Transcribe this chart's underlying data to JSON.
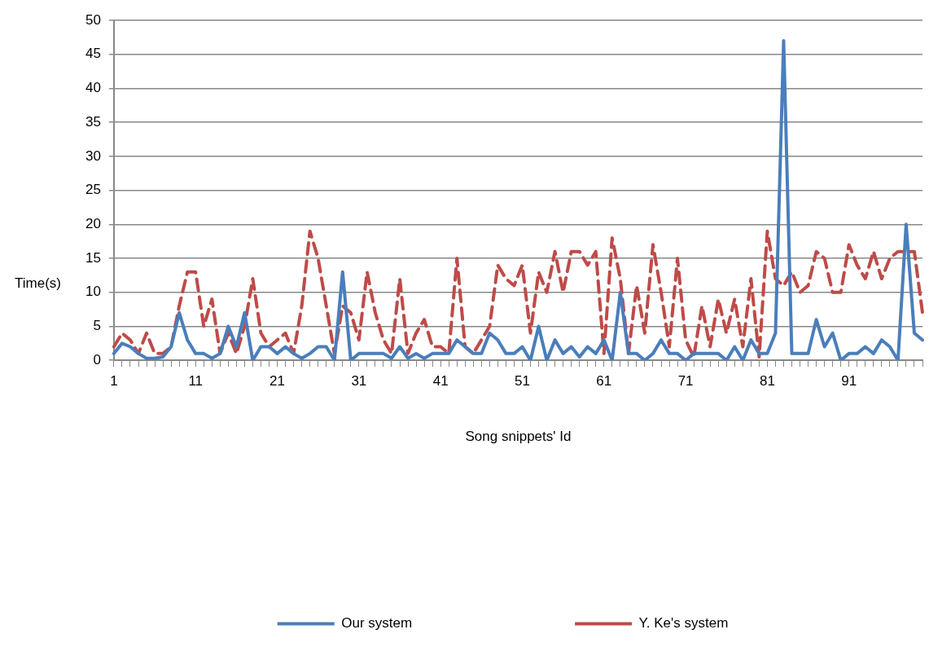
{
  "chart_data": {
    "type": "line",
    "xlabel": "Song snippets' Id",
    "ylabel": "Time(s)",
    "categories": [
      "1",
      null,
      null,
      null,
      null,
      null,
      null,
      null,
      null,
      null,
      "11",
      null,
      null,
      null,
      null,
      null,
      null,
      null,
      null,
      null,
      "21",
      null,
      null,
      null,
      null,
      null,
      null,
      null,
      null,
      null,
      "31",
      null,
      null,
      null,
      null,
      null,
      null,
      null,
      null,
      null,
      "41",
      null,
      null,
      null,
      null,
      null,
      null,
      null,
      null,
      null,
      "51",
      null,
      null,
      null,
      null,
      null,
      null,
      null,
      null,
      null,
      "61",
      null,
      null,
      null,
      null,
      null,
      null,
      null,
      null,
      null,
      "71",
      null,
      null,
      null,
      null,
      null,
      null,
      null,
      null,
      null,
      "81",
      null,
      null,
      null,
      null,
      null,
      null,
      null,
      null,
      null,
      "91",
      null,
      null,
      null,
      null,
      null,
      null,
      null,
      null,
      null
    ],
    "series": [
      {
        "name": "Our system",
        "color": "#4a7ebb",
        "line_style": "solid",
        "values": [
          1,
          2.5,
          2,
          1,
          0.3,
          0.3,
          0.5,
          2,
          7,
          3,
          1,
          1,
          0.3,
          1,
          5,
          2,
          7,
          0,
          2,
          2,
          1,
          2,
          1,
          0.3,
          1,
          2,
          2,
          0,
          13,
          0,
          1,
          1,
          1,
          1,
          0.3,
          2,
          0.3,
          1,
          0.3,
          1,
          1,
          1,
          3,
          2,
          1,
          1,
          4,
          3,
          1,
          1,
          2,
          0,
          5,
          0,
          3,
          1,
          2,
          0.5,
          2,
          1,
          3,
          0,
          10,
          1,
          1,
          0,
          1,
          3,
          1,
          1,
          0,
          1,
          1,
          1,
          1,
          0,
          2,
          0,
          3,
          1,
          1,
          4,
          47,
          1,
          1,
          1,
          6,
          2,
          4,
          0,
          1,
          1,
          2,
          1,
          3,
          2,
          0,
          20,
          4,
          3
        ]
      },
      {
        "name": "Y. Ke's system",
        "color": "#be4b48",
        "line_style": "dashed",
        "values": [
          2,
          4,
          3,
          1,
          4,
          1,
          1,
          2,
          8,
          13,
          13,
          5,
          9,
          1,
          4,
          1,
          5,
          12,
          4,
          2,
          3,
          4,
          1,
          8,
          19,
          15,
          8,
          1,
          8,
          7,
          3,
          13,
          7,
          3,
          1,
          12,
          1,
          4,
          6,
          2,
          2,
          1,
          15,
          2,
          1,
          3,
          5,
          14,
          12,
          11,
          14,
          4,
          13,
          10,
          16,
          10,
          16,
          16,
          14,
          16,
          1,
          18,
          12,
          1,
          11,
          4,
          17,
          10,
          2,
          15,
          3,
          0.5,
          8,
          2,
          9,
          4,
          9,
          2,
          12,
          0.5,
          19,
          12,
          11,
          13,
          10,
          11,
          16,
          15,
          10,
          10,
          17,
          14,
          12,
          16,
          12,
          15,
          16,
          16,
          16,
          7
        ]
      }
    ],
    "ylim": [
      0,
      50
    ],
    "yticks": [
      0,
      5,
      10,
      15,
      20,
      25,
      30,
      35,
      40,
      45,
      50
    ],
    "grid": "y",
    "legend": "bottom",
    "marker": "none"
  }
}
